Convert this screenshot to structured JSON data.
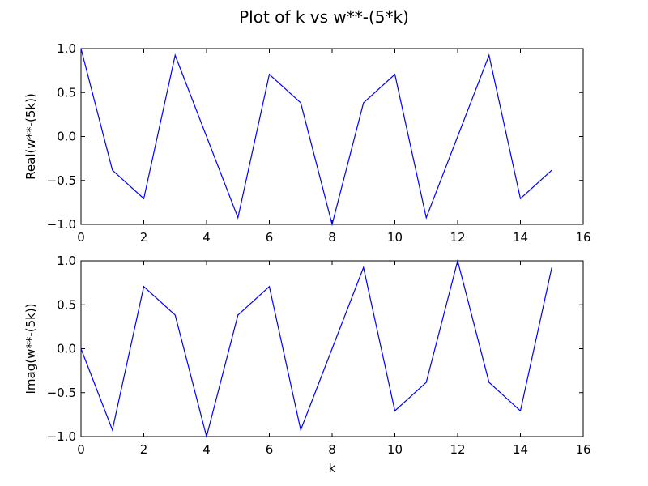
{
  "figure": {
    "title": "Plot of k vs w**-(5*k)"
  },
  "chart_data": [
    {
      "type": "line",
      "xlabel": "",
      "ylabel": "Real(w**-(5k))",
      "xlim": [
        0,
        16
      ],
      "ylim": [
        -1.0,
        1.0
      ],
      "x_ticks": [
        0,
        2,
        4,
        6,
        8,
        10,
        12,
        14,
        16
      ],
      "x_tick_labels": [
        "0",
        "2",
        "4",
        "6",
        "8",
        "10",
        "12",
        "14",
        "16"
      ],
      "y_ticks": [
        -1.0,
        -0.5,
        0.0,
        0.5,
        1.0
      ],
      "y_tick_labels": [
        "−1.0",
        "−0.5",
        "0.0",
        "0.5",
        "1.0"
      ],
      "grid": false,
      "line_color": "#0000ff",
      "series": [
        {
          "x": [
            0,
            1,
            2,
            3,
            4,
            5,
            6,
            7,
            8,
            9,
            10,
            11,
            12,
            13,
            14,
            15
          ],
          "values": [
            1.0,
            -0.383,
            -0.707,
            0.924,
            0.0,
            -0.924,
            0.707,
            0.383,
            -1.0,
            0.383,
            0.707,
            -0.924,
            0.0,
            0.924,
            -0.707,
            -0.383
          ]
        }
      ]
    },
    {
      "type": "line",
      "xlabel": "k",
      "ylabel": "Imag(w**-(5k))",
      "xlim": [
        0,
        16
      ],
      "ylim": [
        -1.0,
        1.0
      ],
      "x_ticks": [
        0,
        2,
        4,
        6,
        8,
        10,
        12,
        14,
        16
      ],
      "x_tick_labels": [
        "0",
        "2",
        "4",
        "6",
        "8",
        "10",
        "12",
        "14",
        "16"
      ],
      "y_ticks": [
        -1.0,
        -0.5,
        0.0,
        0.5,
        1.0
      ],
      "y_tick_labels": [
        "−1.0",
        "−0.5",
        "0.0",
        "0.5",
        "1.0"
      ],
      "grid": false,
      "line_color": "#0000ff",
      "series": [
        {
          "x": [
            0,
            1,
            2,
            3,
            4,
            5,
            6,
            7,
            8,
            9,
            10,
            11,
            12,
            13,
            14,
            15
          ],
          "values": [
            0.0,
            -0.924,
            0.707,
            0.383,
            -1.0,
            0.383,
            0.707,
            -0.924,
            0.0,
            0.924,
            -0.707,
            -0.383,
            1.0,
            -0.383,
            -0.707,
            0.924
          ]
        }
      ]
    }
  ]
}
